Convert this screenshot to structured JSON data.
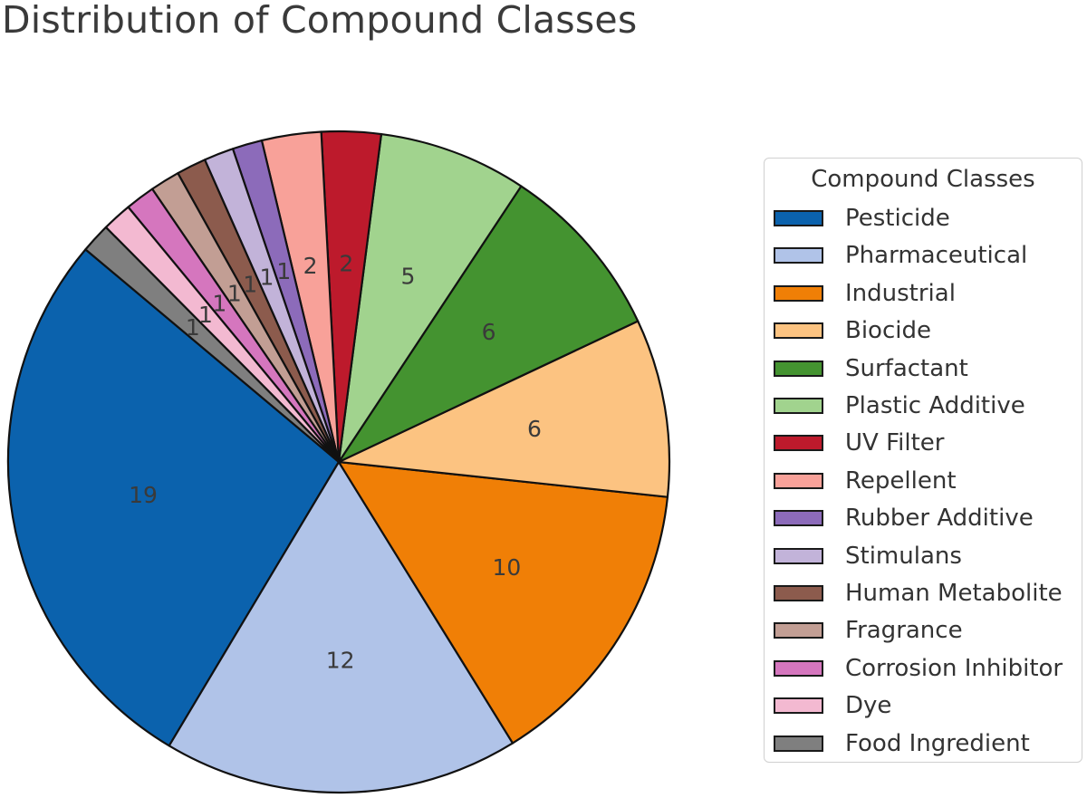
{
  "chart_data": {
    "type": "pie",
    "title": "Distribution of Compound Classes",
    "legend_title": "Compound Classes",
    "legend_position": "right",
    "start_angle_deg": 140,
    "counterclock": true,
    "categories": [
      "Pesticide",
      "Pharmaceutical",
      "Industrial",
      "Biocide",
      "Surfactant",
      "Plastic Additive",
      "UV Filter",
      "Repellent",
      "Rubber Additive",
      "Stimulans",
      "Human Metabolite",
      "Fragrance",
      "Corrosion Inhibitor",
      "Dye",
      "Food Ingredient"
    ],
    "values": [
      19,
      12,
      10,
      6,
      6,
      5,
      2,
      2,
      1,
      1,
      1,
      1,
      1,
      1,
      1
    ],
    "colors": [
      "#0b62ad",
      "#b0c3e8",
      "#f07f06",
      "#fcc381",
      "#449330",
      "#a1d38e",
      "#bd1a2c",
      "#f8a199",
      "#8c6bba",
      "#c2b3d9",
      "#8c5b4d",
      "#c29e94",
      "#d576be",
      "#f3b9d1",
      "#7f7f7f"
    ],
    "value_labels": [
      "19",
      "12",
      "10",
      "6",
      "6",
      "5",
      "2",
      "2",
      "1",
      "1",
      "1",
      "1",
      "1",
      "1",
      "1"
    ]
  }
}
